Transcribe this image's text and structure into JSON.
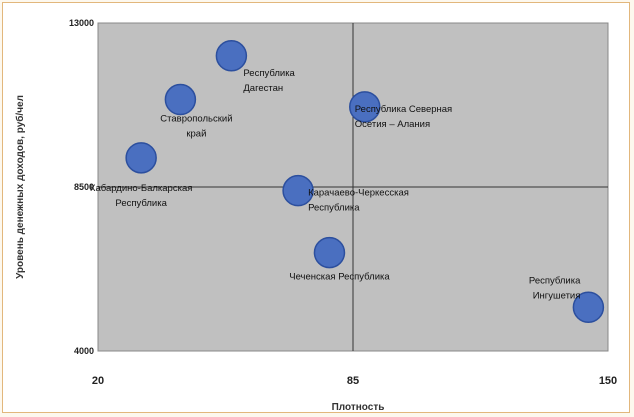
{
  "chart_data": {
    "type": "scatter",
    "xlabel": "Плотность",
    "ylabel": "Уровень денежных доходов, руб/чел",
    "xlim": [
      20,
      150
    ],
    "ylim": [
      4000,
      13000
    ],
    "x_ticks": [
      "20",
      "85",
      "150"
    ],
    "y_ticks": [
      "13000",
      "8500",
      "4000"
    ],
    "divider_x": 85,
    "divider_y": 8500,
    "grid": false,
    "colors": {
      "plot_bg": "#c0c0c0",
      "marker": "#4a6fc0",
      "marker_edge": "#2c4f9e",
      "divider": "#333333"
    },
    "points": [
      {
        "x": 54,
        "y": 12100,
        "label_lines": [
          "Республика",
          "Дагестан"
        ],
        "anchor": "start"
      },
      {
        "x": 41,
        "y": 10900,
        "label_lines": [
          "Ставропольский",
          "край"
        ],
        "anchor": "middle"
      },
      {
        "x": 31,
        "y": 9300,
        "label_lines": [
          "Кабардино-Балкарская",
          "Республика"
        ],
        "anchor": "middle"
      },
      {
        "x": 71,
        "y": 8400,
        "label_lines": [
          "Карачаево-Черкесская",
          "Республика"
        ],
        "anchor": "start"
      },
      {
        "x": 88,
        "y": 10700,
        "label_lines": [
          "Республика Северная",
          "Осетия – Алания"
        ],
        "anchor": "start"
      },
      {
        "x": 79,
        "y": 6700,
        "label_lines": [
          "Чеченская Республика"
        ],
        "anchor": "middle"
      },
      {
        "x": 145,
        "y": 5200,
        "label_lines": [
          "Республика",
          "Ингушетия"
        ],
        "anchor": "end"
      }
    ]
  }
}
